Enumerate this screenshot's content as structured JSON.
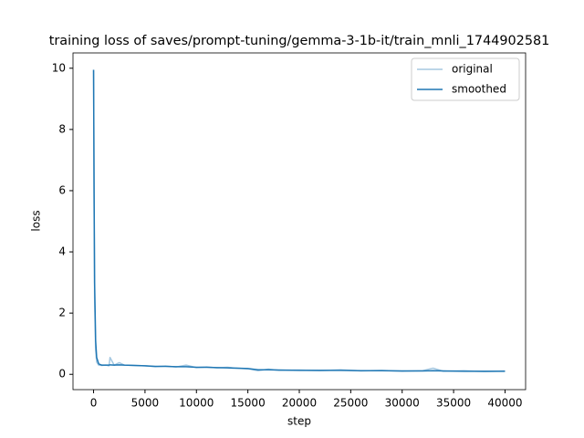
{
  "chart_data": {
    "type": "line",
    "title": "training loss of saves/prompt-tuning/gemma-3-1b-it/train_mnli_1744902581",
    "x_label": "step",
    "y_label": "loss",
    "x": [
      0,
      50,
      100,
      200,
      300,
      500,
      800,
      1200,
      1500,
      1600,
      2000,
      2500,
      3000,
      4000,
      5000,
      6000,
      7000,
      8000,
      9000,
      10000,
      11000,
      12000,
      13000,
      14000,
      15000,
      16000,
      17000,
      18000,
      20000,
      22000,
      24000,
      26000,
      28000,
      30000,
      32000,
      33000,
      34000,
      36000,
      38000,
      40000
    ],
    "series": [
      {
        "name": "original",
        "color": "#a5c8e1",
        "values": [
          9.95,
          5.5,
          2.5,
          0.8,
          0.4,
          0.3,
          0.29,
          0.3,
          0.28,
          0.55,
          0.3,
          0.38,
          0.3,
          0.29,
          0.28,
          0.25,
          0.27,
          0.24,
          0.3,
          0.22,
          0.24,
          0.21,
          0.23,
          0.2,
          0.18,
          0.12,
          0.17,
          0.13,
          0.14,
          0.12,
          0.15,
          0.11,
          0.13,
          0.1,
          0.12,
          0.2,
          0.1,
          0.12,
          0.09,
          0.11
        ]
      },
      {
        "name": "smoothed",
        "color": "#1f77b4",
        "values": [
          9.95,
          6.0,
          3.0,
          1.1,
          0.55,
          0.34,
          0.3,
          0.3,
          0.3,
          0.31,
          0.3,
          0.31,
          0.3,
          0.29,
          0.28,
          0.26,
          0.26,
          0.25,
          0.25,
          0.23,
          0.23,
          0.22,
          0.21,
          0.2,
          0.19,
          0.15,
          0.15,
          0.14,
          0.13,
          0.13,
          0.13,
          0.12,
          0.12,
          0.11,
          0.11,
          0.12,
          0.11,
          0.1,
          0.1,
          0.1
        ]
      }
    ],
    "xlim": [
      -2000,
      42000
    ],
    "ylim": [
      -0.5,
      10.5
    ],
    "xticks": [
      0,
      5000,
      10000,
      15000,
      20000,
      25000,
      30000,
      35000,
      40000
    ],
    "yticks": [
      0,
      2,
      4,
      6,
      8,
      10
    ],
    "legend": "upper right"
  }
}
